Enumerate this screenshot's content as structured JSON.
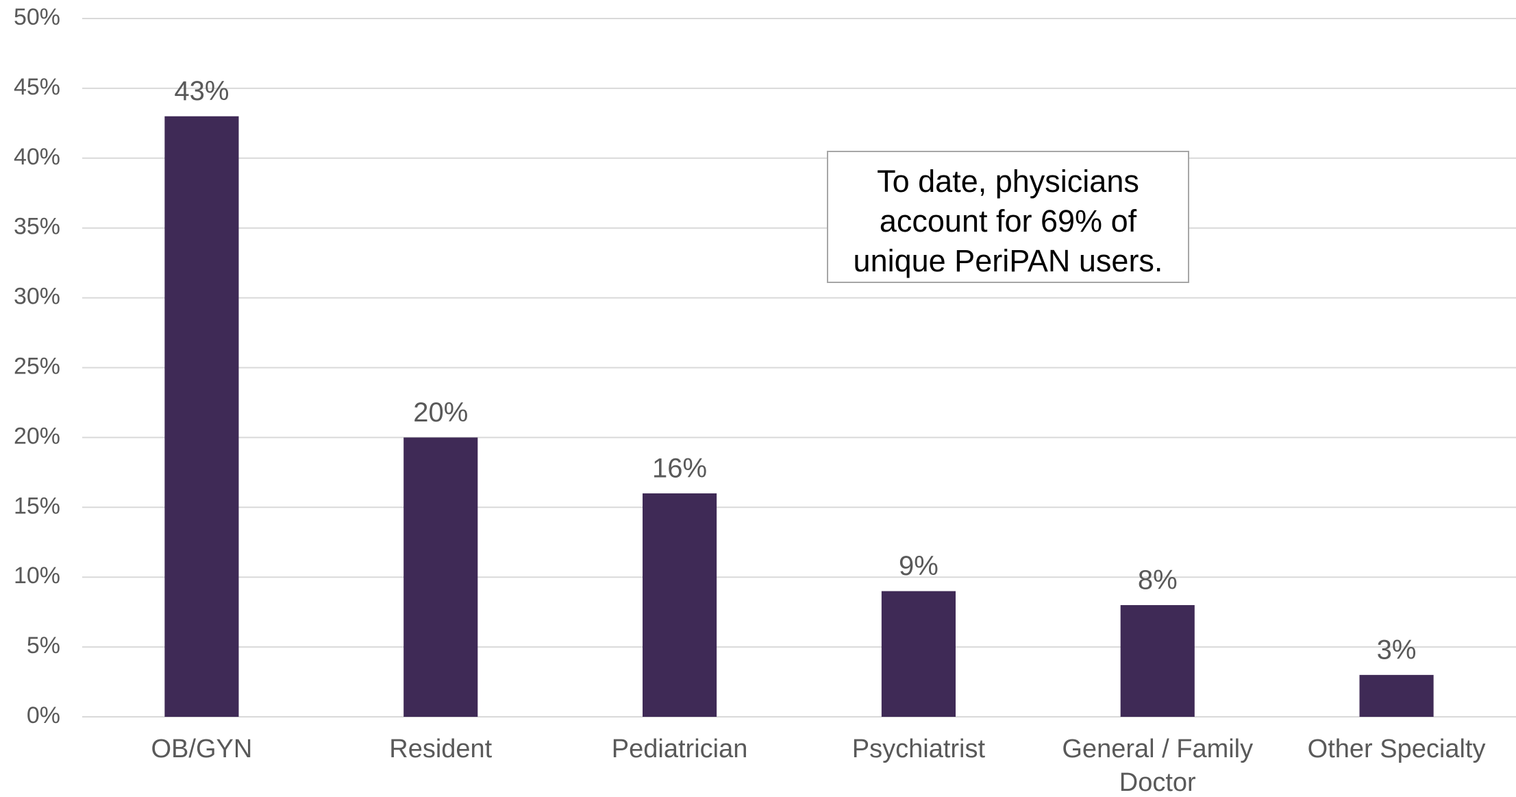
{
  "chart_data": {
    "type": "bar",
    "categories": [
      "OB/GYN",
      "Resident",
      "Pediatrician",
      "Psychiatrist",
      "General / Family Doctor",
      "Other Specialty"
    ],
    "values": [
      43,
      20,
      16,
      9,
      8,
      3
    ],
    "value_labels": [
      "43%",
      "20%",
      "16%",
      "9%",
      "8%",
      "3%"
    ],
    "color": "#3f2a56",
    "ylim": [
      0,
      50
    ],
    "yticks": [
      {
        "value": 0,
        "label": "0%"
      },
      {
        "value": 5,
        "label": "5%"
      },
      {
        "value": 10,
        "label": "10%"
      },
      {
        "value": 15,
        "label": "15%"
      },
      {
        "value": 20,
        "label": "20%"
      },
      {
        "value": 25,
        "label": "25%"
      },
      {
        "value": 30,
        "label": "30%"
      },
      {
        "value": 35,
        "label": "35%"
      },
      {
        "value": 40,
        "label": "40%"
      },
      {
        "value": 45,
        "label": "45%"
      },
      {
        "value": 50,
        "label": "50%"
      }
    ],
    "grid": true,
    "annotation": "To date, physicians account for 69% of unique PeriPAN users."
  }
}
